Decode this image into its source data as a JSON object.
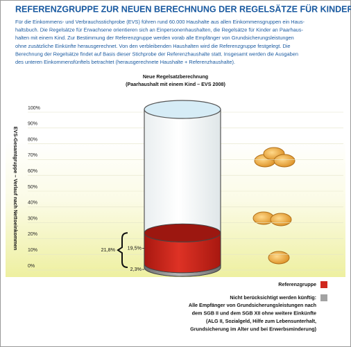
{
  "chart_data": {
    "type": "cylinder",
    "title": "REFERENZGRUPPE ZUR NEUEN BERECHNUNG DER REGELSÄTZE FÜR KINDER",
    "intro_lines": [
      "Für die Einkommens- und Verbrauchsstichprobe (EVS) führen rund 60.000 Haushalte aus allen Einkommensgruppen ein Haus-",
      "haltsbuch. Die Regelsätze für Erwachsene orientieren sich an Einpersonenhaushalten, die Regelsätze für Kinder an Paarhaus-",
      "halten mit einem Kind. Zur Bestimmung der Referenzgruppe werden vorab alle Empfänger von Grundsicherungsleistungen",
      "ohne zusätzliche Einkünfte herausgerechnet. Von den verbleibenden Haushalten wird die Referenzgruppe festgelegt. Die",
      "Berechnung der Regelsätze findet auf Basis dieser Stichprobe der Referenzhaushalte statt. Insgesamt werden die Ausgaben",
      "des unteren Einkommensfünftels betrachtet (herausgerechnete Haushalte + Referenzhaushalte)."
    ],
    "chart_title": "Neue Regelsatzberechnung",
    "chart_subtitle": "(Paarhaushalt mit einem Kind – EVS 2008)",
    "y_label": "EVS-Gesamtgruppe – Verlauf nach Nettoeinkommen",
    "ylim": [
      0,
      100
    ],
    "yticks": [
      {
        "value": 0,
        "label": "0%"
      },
      {
        "value": 10,
        "label": "10%"
      },
      {
        "value": 20,
        "label": "20%"
      },
      {
        "value": 30,
        "label": "30%"
      },
      {
        "value": 40,
        "label": "40%"
      },
      {
        "value": 50,
        "label": "50%"
      },
      {
        "value": 60,
        "label": "60%"
      },
      {
        "value": 70,
        "label": "70%"
      },
      {
        "value": 80,
        "label": "80%"
      },
      {
        "value": 90,
        "label": "90%"
      },
      {
        "value": 100,
        "label": "100%"
      }
    ],
    "series": [
      {
        "name": "Nicht berücksichtigt werden künftig:",
        "color": "#a3a3a3",
        "values": [
          2.3
        ],
        "value_labels": [
          "2,3%"
        ]
      },
      {
        "name": "Referenzgruppe",
        "color": "#d0281e",
        "values": [
          19.5
        ],
        "value_labels": [
          "19,5%"
        ]
      }
    ],
    "total": {
      "value": 21.8,
      "label": "21,8%"
    },
    "legend_note": [
      "Alle Empfänger von Grundsicherungsleistungen nach",
      "dem SGB II und dem SGB XII ohne weitere Einkünfte",
      "(ALG II, Sozialgeld, Hilfe zum Lebensunterhalt,",
      "Grundsicherung im Alter und bei Erwerbsminderung)"
    ]
  }
}
